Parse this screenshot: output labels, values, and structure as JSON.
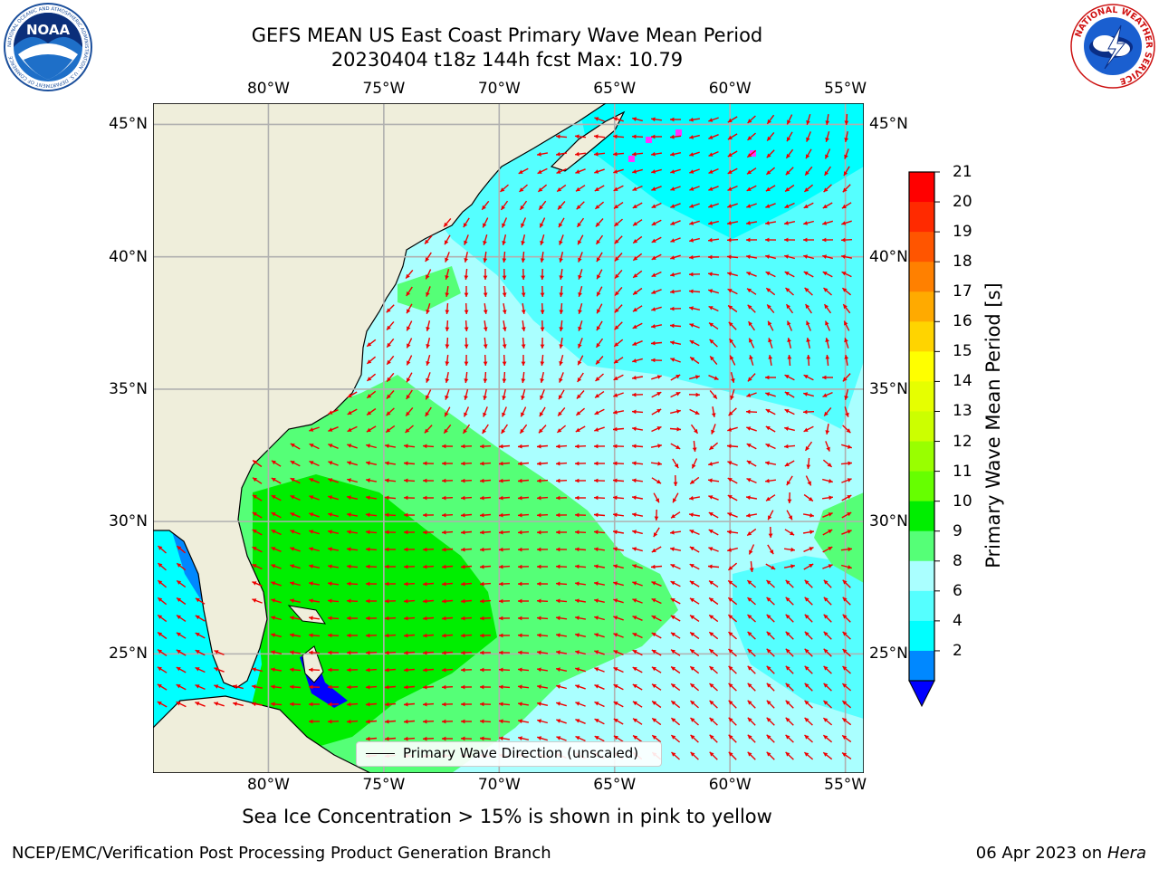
{
  "header": {
    "title_line1": "GEFS MEAN US East Coast Primary Wave Mean Period",
    "title_line2": "20230404 t18z 144h fcst   Max: 10.79"
  },
  "logos": {
    "left": {
      "text": "NOAA",
      "ring_text": "NATIONAL OCEANIC AND ATMOSPHERIC ADMINISTRATION · U.S. DEPARTMENT OF COMMERCE"
    },
    "right": {
      "ring_text": "NATIONAL WEATHER SERVICE"
    }
  },
  "map": {
    "lon_ticks": [
      "80°W",
      "75°W",
      "70°W",
      "65°W",
      "60°W",
      "55°W"
    ],
    "lat_ticks": [
      "45°N",
      "40°N",
      "35°N",
      "30°N",
      "25°N"
    ],
    "lon_range": [
      -85,
      -54.2
    ],
    "lat_range": [
      20.5,
      45.8
    ],
    "legend_label": "Primary Wave Direction (unscaled)",
    "arrow_color": "#ee0000",
    "land_color": "#efeedb",
    "ice_color": "#ff33ff"
  },
  "colorbar": {
    "label": "Primary Wave Mean Period [s]",
    "ticks": [
      "21",
      "20",
      "19",
      "18",
      "17",
      "16",
      "15",
      "14",
      "13",
      "12",
      "11",
      "10",
      "9",
      "8",
      "6",
      "4",
      "2"
    ],
    "colors_top_to_bottom": [
      "#ff0000",
      "#ff2a00",
      "#ff5500",
      "#ff8000",
      "#ffaa00",
      "#ffd400",
      "#ffff00",
      "#e6ff00",
      "#ccff00",
      "#99ff00",
      "#66ff00",
      "#00ee00",
      "#55ff77",
      "#aaffff",
      "#55ffff",
      "#00ffff",
      "#0088ff"
    ],
    "extend_color": "#0000ff"
  },
  "caption": "Sea Ice Concentration > 15% is shown in pink to yellow",
  "footer": {
    "left": "NCEP/EMC/Verification Post Processing Product Generation Branch",
    "date": "06 Apr 2023 on ",
    "host": "Hera"
  }
}
